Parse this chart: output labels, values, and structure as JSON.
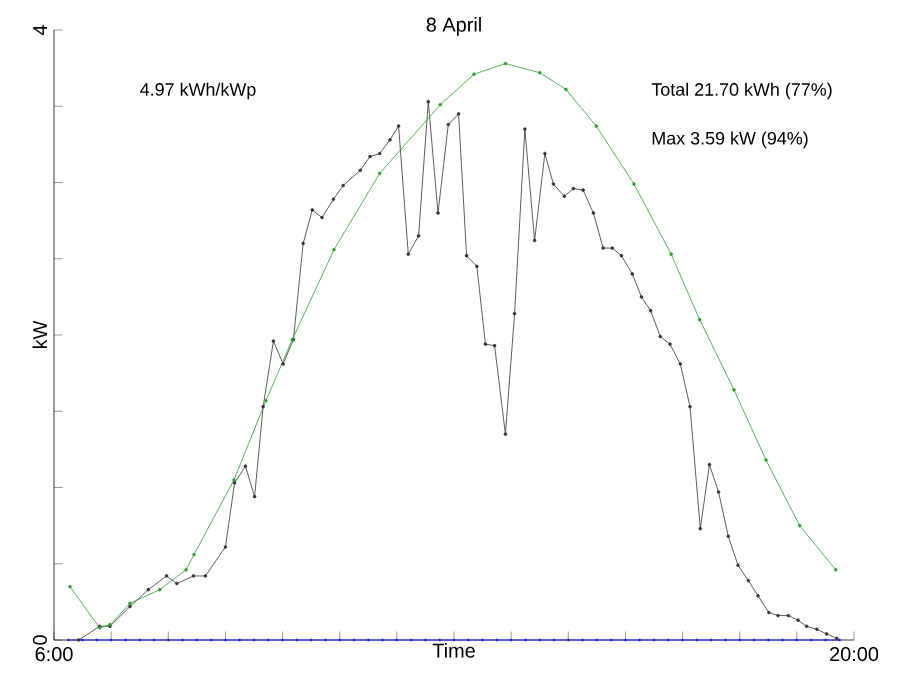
{
  "chart_data": {
    "type": "line",
    "title": "8 April",
    "xlabel": "Time",
    "ylabel": "kW",
    "annotations": [
      "4.97 kWh/kWp",
      "Total 21.70 kWh (77%)",
      "Max 3.59 kW (94%)"
    ],
    "xlim": [
      6,
      20
    ],
    "ylim": [
      0,
      4
    ],
    "xticks": [
      {
        "value": 6,
        "label": "6:00"
      },
      {
        "value": 7,
        "label": null
      },
      {
        "value": 8,
        "label": null
      },
      {
        "value": 9,
        "label": null
      },
      {
        "value": 10,
        "label": null
      },
      {
        "value": 11,
        "label": null
      },
      {
        "value": 12,
        "label": null
      },
      {
        "value": 13,
        "label": null
      },
      {
        "value": 14,
        "label": null
      },
      {
        "value": 15,
        "label": null
      },
      {
        "value": 16,
        "label": null
      },
      {
        "value": 17,
        "label": null
      },
      {
        "value": 18,
        "label": null
      },
      {
        "value": 19,
        "label": null
      },
      {
        "value": 20,
        "label": "20:00"
      }
    ],
    "yticks": [
      0,
      {
        "value": 0.5,
        "label": null
      },
      {
        "value": 1,
        "label": null
      },
      {
        "value": 1.5,
        "label": null
      },
      {
        "value": 2,
        "label": null
      },
      {
        "value": 2.5,
        "label": null
      },
      {
        "value": 3,
        "label": null
      },
      {
        "value": 3.5,
        "label": null
      },
      4
    ],
    "grid": false,
    "line_style": "solid",
    "series": [
      {
        "color": "#2e9e2e",
        "marker": "circle",
        "x": [
          6.28,
          6.8,
          6.98,
          7.33,
          7.85,
          8.31,
          8.45,
          9.15,
          9.71,
          10.17,
          10.9,
          11.7,
          12.76,
          13.35,
          13.9,
          14.5,
          14.96,
          15.49,
          16.15,
          16.8,
          17.3,
          17.9,
          18.46,
          19.05,
          19.68
        ],
        "values": [
          0.35,
          0.08,
          0.1,
          0.24,
          0.33,
          0.46,
          0.56,
          1.05,
          1.57,
          1.97,
          2.56,
          3.06,
          3.51,
          3.71,
          3.78,
          3.72,
          3.61,
          3.37,
          2.99,
          2.53,
          2.1,
          1.64,
          1.18,
          0.75,
          0.46
        ]
      },
      {
        "color": "#333333",
        "marker": "circle",
        "x": [
          6.43,
          6.8,
          6.98,
          7.33,
          7.65,
          7.97,
          8.15,
          8.44,
          8.65,
          9.0,
          9.16,
          9.35,
          9.51,
          9.66,
          9.84,
          10.01,
          10.19,
          10.36,
          10.52,
          10.69,
          10.89,
          11.06,
          11.36,
          11.53,
          11.7,
          11.88,
          12.03,
          12.2,
          12.38,
          12.55,
          12.72,
          12.9,
          13.08,
          13.22,
          13.4,
          13.55,
          13.71,
          13.9,
          14.06,
          14.24,
          14.41,
          14.59,
          14.74,
          14.93,
          15.09,
          15.26,
          15.44,
          15.61,
          15.77,
          15.93,
          16.12,
          16.28,
          16.44,
          16.61,
          16.78,
          16.96,
          17.13,
          17.31,
          17.47,
          17.63,
          17.8,
          17.97,
          18.15,
          18.32,
          18.51,
          18.67,
          18.85,
          19.02,
          19.17,
          19.35,
          19.52,
          19.7
        ],
        "values": [
          0,
          0.09,
          0.09,
          0.22,
          0.33,
          0.42,
          0.37,
          0.42,
          0.42,
          0.61,
          1.03,
          1.14,
          0.94,
          1.53,
          1.96,
          1.81,
          1.97,
          2.6,
          2.82,
          2.77,
          2.89,
          2.98,
          3.08,
          3.17,
          3.19,
          3.28,
          3.37,
          2.53,
          2.65,
          3.53,
          2.8,
          3.38,
          3.45,
          2.52,
          2.45,
          1.94,
          1.93,
          1.35,
          2.14,
          3.35,
          2.62,
          3.19,
          2.99,
          2.91,
          2.96,
          2.95,
          2.8,
          2.57,
          2.57,
          2.52,
          2.4,
          2.25,
          2.16,
          1.99,
          1.94,
          1.81,
          1.53,
          0.73,
          1.15,
          0.97,
          0.68,
          0.49,
          0.39,
          0.29,
          0.18,
          0.16,
          0.16,
          0.13,
          0.09,
          0.07,
          0.04,
          0.01
        ]
      },
      {
        "color": "#0000ff",
        "marker": "cross",
        "x": [
          6.25,
          6.5,
          6.75,
          7,
          7.25,
          7.5,
          7.75,
          8,
          8.25,
          8.5,
          8.75,
          9,
          9.25,
          9.5,
          9.75,
          10,
          10.25,
          10.5,
          10.75,
          11,
          11.25,
          11.5,
          11.75,
          12,
          12.25,
          12.5,
          12.75,
          13,
          13.25,
          13.5,
          13.75,
          14,
          14.25,
          14.5,
          14.75,
          15,
          15.25,
          15.5,
          15.75,
          16,
          16.25,
          16.5,
          16.75,
          17,
          17.25,
          17.5,
          17.75,
          18,
          18.25,
          18.5,
          18.75,
          19,
          19.25,
          19.5,
          19.75
        ],
        "values": [
          0,
          0,
          0,
          0,
          0,
          0,
          0,
          0,
          0,
          0,
          0,
          0,
          0,
          0,
          0,
          0,
          0,
          0,
          0,
          0,
          0,
          0,
          0,
          0,
          0,
          0,
          0,
          0,
          0,
          0,
          0,
          0,
          0,
          0,
          0,
          0,
          0,
          0,
          0,
          0,
          0,
          0,
          0,
          0,
          0,
          0,
          0,
          0,
          0,
          0,
          0,
          0,
          0,
          0,
          0
        ]
      }
    ]
  }
}
